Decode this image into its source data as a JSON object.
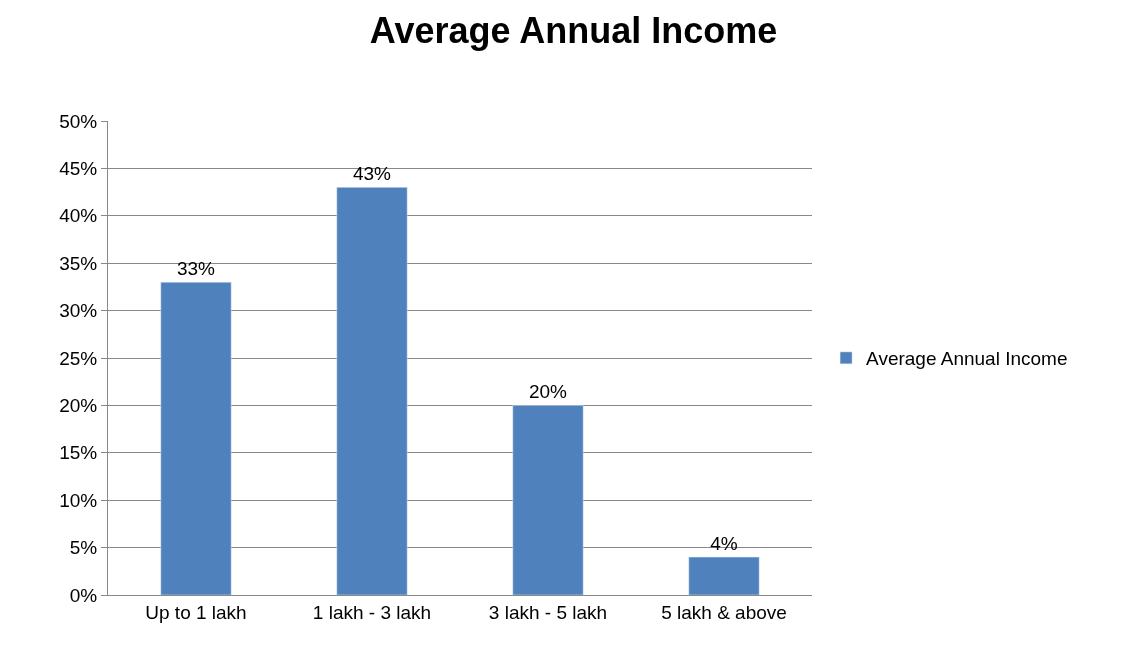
{
  "chart_data": {
    "type": "bar",
    "title": "Average Annual Income",
    "categories": [
      "Up to 1 lakh",
      "1 lakh - 3 lakh",
      "3 lakh - 5 lakh",
      "5 lakh & above"
    ],
    "series": [
      {
        "name": "Average Annual Income",
        "color": "#4f81bd",
        "values": [
          33,
          43,
          20,
          4
        ],
        "value_labels": [
          "33%",
          "43%",
          "20%",
          "4%"
        ]
      }
    ],
    "ylim": [
      0,
      50
    ],
    "yticks": [
      {
        "value": 0,
        "label": "0%"
      },
      {
        "value": 5,
        "label": "5%"
      },
      {
        "value": 10,
        "label": "10%"
      },
      {
        "value": 15,
        "label": "15%"
      },
      {
        "value": 20,
        "label": "20%"
      },
      {
        "value": 25,
        "label": "25%"
      },
      {
        "value": 30,
        "label": "30%"
      },
      {
        "value": 35,
        "label": "35%"
      },
      {
        "value": 40,
        "label": "40%"
      },
      {
        "value": 45,
        "label": "45%"
      },
      {
        "value": 50,
        "label": "50%"
      }
    ],
    "grid": "y",
    "legend": "right"
  }
}
